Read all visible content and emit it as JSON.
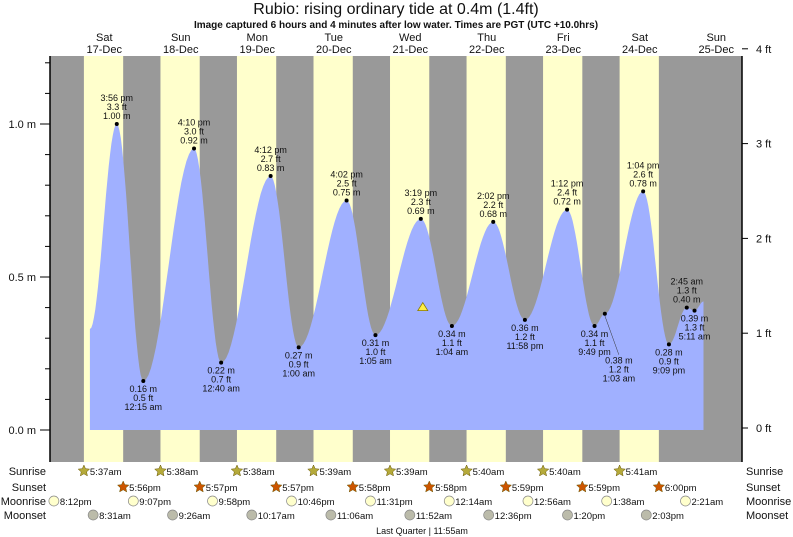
{
  "title": "Rubio: rising  ordinary tide at 0.4m (1.4ft)",
  "subtitle": "Image captured 6 hours and 4 minutes after low water. Times are PGT (UTC +10.0hrs)",
  "colors": {
    "night": "#999999",
    "day": "#ffffcc",
    "water": "#a0b0ff",
    "day_label": "#ff3333",
    "sunrise": "#b5aa3a",
    "sunset": "#cc5500",
    "moonrise": "#ffffcc",
    "moonset": "#bbbbaa"
  },
  "chart_data": {
    "type": "area",
    "y_left_unit": "m",
    "y_right_unit": "ft",
    "ylim_m": [
      0,
      1.2
    ],
    "y_left_ticks": [
      {
        "v": 0,
        "label": "0.0 m"
      },
      {
        "v": 0.5,
        "label": "0.5 m"
      },
      {
        "v": 1.0,
        "label": "1.0 m"
      }
    ],
    "y_right_ticks": [
      {
        "v": 0,
        "label": "0 ft"
      },
      {
        "v": 1,
        "label": "1 ft"
      },
      {
        "v": 2,
        "label": "2 ft"
      },
      {
        "v": 3,
        "label": "3 ft"
      },
      {
        "v": 4,
        "label": "4 ft"
      }
    ],
    "days": [
      {
        "day": "Sat",
        "date": "17-Dec"
      },
      {
        "day": "Sun",
        "date": "18-Dec"
      },
      {
        "day": "Mon",
        "date": "19-Dec"
      },
      {
        "day": "Tue",
        "date": "20-Dec"
      },
      {
        "day": "Wed",
        "date": "21-Dec"
      },
      {
        "day": "Thu",
        "date": "22-Dec"
      },
      {
        "day": "Fri",
        "date": "23-Dec"
      },
      {
        "day": "Sat",
        "date": "24-Dec"
      },
      {
        "day": "Sun",
        "date": "25-Dec"
      }
    ],
    "curve_start": {
      "date": "17-Dec",
      "time": "7:30 am",
      "m": 0.33
    },
    "curve_end": {
      "date": "25-Dec",
      "time": "8:00 am",
      "m": 0.42
    },
    "extremes": [
      {
        "type": "high",
        "date": "17-Dec",
        "time": "3:56 pm",
        "m": "1.00 m",
        "ft": "3.3 ft",
        "v": 1.0
      },
      {
        "type": "low",
        "date": "18-Dec",
        "time": "12:15 am",
        "m": "0.16 m",
        "ft": "0.5 ft",
        "v": 0.16
      },
      {
        "type": "high",
        "date": "18-Dec",
        "time": "4:10 pm",
        "m": "0.92 m",
        "ft": "3.0 ft",
        "v": 0.92
      },
      {
        "type": "low",
        "date": "19-Dec",
        "time": "12:40 am",
        "m": "0.22 m",
        "ft": "0.7 ft",
        "v": 0.22
      },
      {
        "type": "high",
        "date": "19-Dec",
        "time": "4:12 pm",
        "m": "0.83 m",
        "ft": "2.7 ft",
        "v": 0.83
      },
      {
        "type": "low",
        "date": "20-Dec",
        "time": "1:00 am",
        "m": "0.27 m",
        "ft": "0.9 ft",
        "v": 0.27
      },
      {
        "type": "high",
        "date": "20-Dec",
        "time": "4:02 pm",
        "m": "0.75 m",
        "ft": "2.5 ft",
        "v": 0.75
      },
      {
        "type": "low",
        "date": "21-Dec",
        "time": "1:05 am",
        "m": "0.31 m",
        "ft": "1.0 ft",
        "v": 0.31
      },
      {
        "type": "high",
        "date": "21-Dec",
        "time": "3:19 pm",
        "m": "0.69 m",
        "ft": "2.3 ft",
        "v": 0.69
      },
      {
        "type": "low",
        "date": "22-Dec",
        "time": "1:04 am",
        "m": "0.34 m",
        "ft": "1.1 ft",
        "v": 0.34
      },
      {
        "type": "high",
        "date": "22-Dec",
        "time": "2:02 pm",
        "m": "0.68 m",
        "ft": "2.2 ft",
        "v": 0.68
      },
      {
        "type": "low",
        "date": "22-Dec",
        "time": "11:58 pm",
        "m": "0.36 m",
        "ft": "1.2 ft",
        "v": 0.36
      },
      {
        "type": "high",
        "date": "23-Dec",
        "time": "1:12 pm",
        "m": "0.72 m",
        "ft": "2.4 ft",
        "v": 0.72
      },
      {
        "type": "low",
        "date": "23-Dec",
        "time": "9:49 pm",
        "m": "0.34 m",
        "ft": "1.1 ft",
        "v": 0.34
      },
      {
        "type": "high",
        "date": "24-Dec",
        "time": "1:03 am",
        "m": "0.38 m",
        "ft": "1.2 ft",
        "v": 0.38,
        "label_below": true
      },
      {
        "type": "high",
        "date": "24-Dec",
        "time": "1:04 pm",
        "m": "0.78 m",
        "ft": "2.6 ft",
        "v": 0.78
      },
      {
        "type": "low",
        "date": "24-Dec",
        "time": "9:09 pm",
        "m": "0.28 m",
        "ft": "0.9 ft",
        "v": 0.28
      },
      {
        "type": "high",
        "date": "25-Dec",
        "time": "2:45 am",
        "m": "0.40 m",
        "ft": "1.3 ft",
        "v": 0.4
      },
      {
        "type": "low",
        "date": "25-Dec",
        "time": "5:11 am",
        "m": "0.39 m",
        "ft": "1.3 ft",
        "v": 0.39
      }
    ],
    "current": {
      "date": "21-Dec",
      "time": "7:09 am",
      "m": 0.4
    }
  },
  "rows": {
    "labels": {
      "sunrise": "Sunrise",
      "sunset": "Sunset",
      "moonrise": "Moonrise",
      "moonset": "Moonset"
    },
    "sunrise": [
      {
        "date": "17-Dec",
        "time": "5:37am"
      },
      {
        "date": "18-Dec",
        "time": "5:38am"
      },
      {
        "date": "19-Dec",
        "time": "5:38am"
      },
      {
        "date": "20-Dec",
        "time": "5:39am"
      },
      {
        "date": "21-Dec",
        "time": "5:39am"
      },
      {
        "date": "22-Dec",
        "time": "5:40am"
      },
      {
        "date": "23-Dec",
        "time": "5:40am"
      },
      {
        "date": "24-Dec",
        "time": "5:41am"
      }
    ],
    "sunset": [
      {
        "date": "17-Dec",
        "time": "5:56pm"
      },
      {
        "date": "18-Dec",
        "time": "5:57pm"
      },
      {
        "date": "19-Dec",
        "time": "5:57pm"
      },
      {
        "date": "20-Dec",
        "time": "5:58pm"
      },
      {
        "date": "21-Dec",
        "time": "5:58pm"
      },
      {
        "date": "22-Dec",
        "time": "5:59pm"
      },
      {
        "date": "23-Dec",
        "time": "5:59pm"
      },
      {
        "date": "24-Dec",
        "time": "6:00pm"
      }
    ],
    "moonrise": [
      {
        "date": "16-Dec",
        "time": "8:12pm"
      },
      {
        "date": "17-Dec",
        "time": "9:07pm"
      },
      {
        "date": "18-Dec",
        "time": "9:58pm"
      },
      {
        "date": "19-Dec",
        "time": "10:46pm"
      },
      {
        "date": "20-Dec",
        "time": "11:31pm"
      },
      {
        "date": "22-Dec",
        "time": "12:14am"
      },
      {
        "date": "23-Dec",
        "time": "12:56am"
      },
      {
        "date": "24-Dec",
        "time": "1:38am"
      },
      {
        "date": "25-Dec",
        "time": "2:21am"
      }
    ],
    "moonset": [
      {
        "date": "17-Dec",
        "time": "8:31am"
      },
      {
        "date": "18-Dec",
        "time": "9:26am"
      },
      {
        "date": "19-Dec",
        "time": "10:17am"
      },
      {
        "date": "20-Dec",
        "time": "11:06am"
      },
      {
        "date": "21-Dec",
        "time": "11:52am"
      },
      {
        "date": "22-Dec",
        "time": "12:36pm"
      },
      {
        "date": "23-Dec",
        "time": "1:20pm"
      },
      {
        "date": "24-Dec",
        "time": "2:03pm"
      }
    ],
    "moon_phase": "Last Quarter | 11:55am"
  }
}
